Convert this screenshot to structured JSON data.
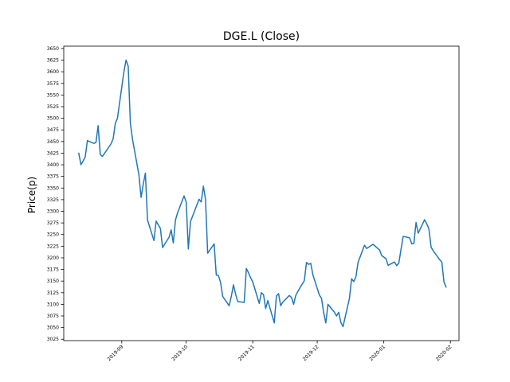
{
  "chart_data": {
    "type": "line",
    "title": "DGE.L (Close)",
    "xlabel": "",
    "ylabel": "Price(p)",
    "grid": false,
    "legend": "none",
    "color": "#1f77b4",
    "x_date_range": [
      "2019-08-05",
      "2020-02-05"
    ],
    "ylim": [
      3022,
      3655
    ],
    "y_ticks": [
      3025,
      3050,
      3075,
      3100,
      3125,
      3150,
      3175,
      3200,
      3225,
      3250,
      3275,
      3300,
      3325,
      3350,
      3375,
      3400,
      3425,
      3450,
      3475,
      3500,
      3525,
      3550,
      3575,
      3600,
      3625,
      3650
    ],
    "x_ticks": [
      {
        "date": "2019-09-01",
        "label": "2019-09"
      },
      {
        "date": "2019-10-01",
        "label": "2019-10"
      },
      {
        "date": "2019-11-01",
        "label": "2019-11"
      },
      {
        "date": "2019-12-01",
        "label": "2019-12"
      },
      {
        "date": "2020-01-01",
        "label": "2020-01"
      },
      {
        "date": "2020-02-01",
        "label": "2020-02"
      }
    ],
    "series": [
      {
        "x": [
          "2019-08-12",
          "2019-08-13",
          "2019-08-14",
          "2019-08-15",
          "2019-08-16",
          "2019-08-19",
          "2019-08-20",
          "2019-08-21",
          "2019-08-22",
          "2019-08-23",
          "2019-08-27",
          "2019-08-28",
          "2019-08-29",
          "2019-08-30",
          "2019-09-02",
          "2019-09-03",
          "2019-09-04",
          "2019-09-05",
          "2019-09-06",
          "2019-09-09",
          "2019-09-10",
          "2019-09-11",
          "2019-09-12",
          "2019-09-13",
          "2019-09-16",
          "2019-09-17",
          "2019-09-18",
          "2019-09-19",
          "2019-09-20",
          "2019-09-23",
          "2019-09-24",
          "2019-09-25",
          "2019-09-26",
          "2019-09-27",
          "2019-09-30",
          "2019-10-01",
          "2019-10-02",
          "2019-10-03",
          "2019-10-04",
          "2019-10-07",
          "2019-10-08",
          "2019-10-09",
          "2019-10-10",
          "2019-10-11",
          "2019-10-14",
          "2019-10-15",
          "2019-10-16",
          "2019-10-17",
          "2019-10-18",
          "2019-10-21",
          "2019-10-22",
          "2019-10-23",
          "2019-10-24",
          "2019-10-25",
          "2019-10-28",
          "2019-10-29",
          "2019-10-30",
          "2019-10-31",
          "2019-11-01",
          "2019-11-04",
          "2019-11-05",
          "2019-11-06",
          "2019-11-07",
          "2019-11-08",
          "2019-11-11",
          "2019-11-12",
          "2019-11-13",
          "2019-11-14",
          "2019-11-15",
          "2019-11-18",
          "2019-11-19",
          "2019-11-20",
          "2019-11-21",
          "2019-11-22",
          "2019-11-25",
          "2019-11-26",
          "2019-11-27",
          "2019-11-28",
          "2019-11-29",
          "2019-12-02",
          "2019-12-03",
          "2019-12-04",
          "2019-12-05",
          "2019-12-06",
          "2019-12-09",
          "2019-12-10",
          "2019-12-11",
          "2019-12-12",
          "2019-12-13",
          "2019-12-16",
          "2019-12-17",
          "2019-12-18",
          "2019-12-19",
          "2019-12-20",
          "2019-12-23",
          "2019-12-24",
          "2019-12-27",
          "2019-12-30",
          "2019-12-31",
          "2020-01-02",
          "2020-01-03",
          "2020-01-06",
          "2020-01-07",
          "2020-01-08",
          "2020-01-09",
          "2020-01-10",
          "2020-01-13",
          "2020-01-14",
          "2020-01-15",
          "2020-01-16",
          "2020-01-17",
          "2020-01-20",
          "2020-01-21",
          "2020-01-22",
          "2020-01-23",
          "2020-01-24",
          "2020-01-27",
          "2020-01-28",
          "2020-01-29",
          "2020-01-30"
        ],
        "values": [
          3425,
          3400,
          3408,
          3417,
          3452,
          3446,
          3448,
          3484,
          3422,
          3418,
          3445,
          3456,
          3489,
          3500,
          3600,
          3625,
          3612,
          3490,
          3455,
          3378,
          3330,
          3358,
          3382,
          3281,
          3237,
          3279,
          3271,
          3263,
          3222,
          3244,
          3260,
          3232,
          3281,
          3297,
          3333,
          3320,
          3219,
          3278,
          3290,
          3326,
          3320,
          3354,
          3325,
          3210,
          3230,
          3163,
          3162,
          3147,
          3117,
          3097,
          3117,
          3142,
          3122,
          3106,
          3104,
          3177,
          3168,
          3157,
          3148,
          3102,
          3125,
          3121,
          3091,
          3108,
          3060,
          3118,
          3123,
          3097,
          3105,
          3119,
          3115,
          3100,
          3119,
          3128,
          3151,
          3190,
          3186,
          3188,
          3163,
          3120,
          3113,
          3082,
          3060,
          3100,
          3083,
          3075,
          3083,
          3061,
          3052,
          3113,
          3155,
          3149,
          3159,
          3190,
          3227,
          3220,
          3229,
          3217,
          3205,
          3198,
          3184,
          3191,
          3183,
          3189,
          3218,
          3246,
          3243,
          3230,
          3231,
          3276,
          3253,
          3282,
          3273,
          3262,
          3223,
          3215,
          3196,
          3191,
          3148,
          3137
        ]
      }
    ]
  }
}
